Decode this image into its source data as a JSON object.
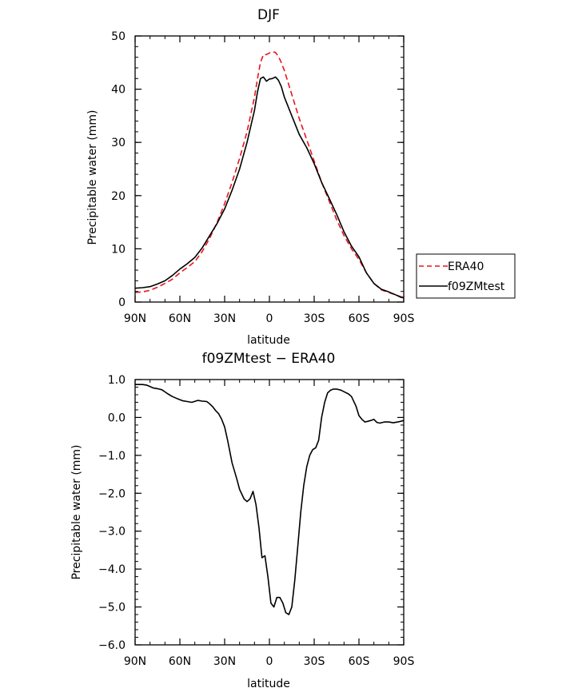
{
  "chart_data": [
    {
      "type": "line",
      "title": "DJF",
      "xlabel": "latitude",
      "ylabel": "Precipitable water (mm)",
      "xlim": [
        90,
        -90
      ],
      "ylim": [
        0,
        50
      ],
      "x_ticks": [
        90,
        60,
        30,
        0,
        -30,
        -60,
        -90
      ],
      "x_tick_labels": [
        "90N",
        "60N",
        "30N",
        "0",
        "30S",
        "60S",
        "90S"
      ],
      "y_ticks": [
        0,
        10,
        20,
        30,
        40,
        50
      ],
      "y_tick_labels": [
        "0",
        "10",
        "20",
        "30",
        "40",
        "50"
      ],
      "legend_position": "right",
      "series": [
        {
          "name": "ERA40",
          "color": "#e8141b",
          "dash": "dashed",
          "x": [
            90,
            85,
            80,
            75,
            70,
            65,
            60,
            55,
            50,
            45,
            40,
            35,
            30,
            25,
            20,
            15,
            10,
            8,
            6,
            4,
            2,
            0,
            -2,
            -4,
            -6,
            -8,
            -10,
            -15,
            -20,
            -25,
            -30,
            -35,
            -40,
            -45,
            -50,
            -55,
            -60,
            -65,
            -70,
            -75,
            -80,
            -85,
            -88,
            -90
          ],
          "y": [
            1.8,
            1.9,
            2.2,
            2.8,
            3.5,
            4.3,
            5.5,
            6.5,
            7.6,
            9.5,
            12.0,
            15.0,
            18.5,
            22.5,
            27.0,
            32.0,
            38.5,
            42.0,
            45.0,
            46.5,
            46.5,
            46.8,
            47.0,
            46.9,
            46.2,
            45.0,
            43.5,
            39.0,
            34.5,
            30.5,
            26.5,
            22.5,
            19.0,
            15.5,
            12.5,
            10.0,
            8.0,
            5.5,
            3.5,
            2.3,
            1.8,
            1.3,
            1.0,
            0.9
          ]
        },
        {
          "name": "f09ZMtest",
          "color": "#000000",
          "dash": "solid",
          "x": [
            90,
            85,
            80,
            75,
            70,
            65,
            60,
            55,
            50,
            45,
            40,
            35,
            30,
            25,
            20,
            15,
            10,
            8,
            6,
            4,
            2,
            0,
            -2,
            -4,
            -6,
            -8,
            -10,
            -15,
            -20,
            -25,
            -30,
            -35,
            -40,
            -45,
            -50,
            -55,
            -60,
            -65,
            -70,
            -75,
            -80,
            -85,
            -88,
            -90
          ],
          "y": [
            2.6,
            2.7,
            2.9,
            3.4,
            4.0,
            5.0,
            6.2,
            7.2,
            8.4,
            10.2,
            12.5,
            14.8,
            17.5,
            21.0,
            25.0,
            30.0,
            36.0,
            39.5,
            42.0,
            42.3,
            41.5,
            41.9,
            42.0,
            42.3,
            41.7,
            40.5,
            38.5,
            35.0,
            31.5,
            29.0,
            26.0,
            22.5,
            19.5,
            16.5,
            13.2,
            10.5,
            8.5,
            5.5,
            3.5,
            2.4,
            1.9,
            1.3,
            0.9,
            0.8
          ]
        }
      ]
    },
    {
      "type": "line",
      "title": "f09ZMtest − ERA40",
      "xlabel": "latitude",
      "ylabel": "Precipitable water (mm)",
      "xlim": [
        90,
        -90
      ],
      "ylim": [
        -6,
        1
      ],
      "x_ticks": [
        90,
        60,
        30,
        0,
        -30,
        -60,
        -90
      ],
      "x_tick_labels": [
        "90N",
        "60N",
        "30N",
        "0",
        "30S",
        "60S",
        "90S"
      ],
      "y_ticks": [
        1,
        0,
        -1,
        -2,
        -3,
        -4,
        -5,
        -6
      ],
      "y_tick_labels": [
        "1.0",
        "0.0",
        "−1.0",
        "−2.0",
        "−3.0",
        "−4.0",
        "−5.0",
        "−6.0"
      ],
      "series": [
        {
          "color": "#000000",
          "dash": "solid",
          "x": [
            90,
            85,
            82,
            78,
            75,
            72,
            68,
            65,
            62,
            58,
            55,
            52,
            48,
            45,
            42,
            40,
            38,
            36,
            34,
            32,
            30,
            28,
            25,
            22,
            20,
            17,
            15,
            13,
            11,
            9,
            7,
            5,
            3,
            1,
            -1,
            -3,
            -5,
            -7,
            -9,
            -11,
            -13,
            -15,
            -17,
            -19,
            -21,
            -23,
            -25,
            -27,
            -29,
            -31,
            -33,
            -35,
            -37,
            -39,
            -41,
            -43,
            -45,
            -48,
            -50,
            -53,
            -55,
            -58,
            -60,
            -62,
            -64,
            -66,
            -68,
            -70,
            -72,
            -74,
            -77,
            -80,
            -83,
            -86,
            -88,
            -90
          ],
          "y": [
            0.87,
            0.87,
            0.85,
            0.78,
            0.76,
            0.73,
            0.62,
            0.55,
            0.5,
            0.44,
            0.42,
            0.4,
            0.45,
            0.43,
            0.42,
            0.36,
            0.28,
            0.18,
            0.1,
            -0.05,
            -0.25,
            -0.6,
            -1.2,
            -1.6,
            -1.9,
            -2.15,
            -2.22,
            -2.15,
            -1.95,
            -2.3,
            -2.9,
            -3.7,
            -3.65,
            -4.2,
            -4.9,
            -5.0,
            -4.75,
            -4.75,
            -4.9,
            -5.15,
            -5.2,
            -5.0,
            -4.3,
            -3.4,
            -2.5,
            -1.8,
            -1.3,
            -1.0,
            -0.85,
            -0.8,
            -0.6,
            0.0,
            0.4,
            0.65,
            0.72,
            0.75,
            0.75,
            0.72,
            0.68,
            0.62,
            0.55,
            0.3,
            0.05,
            -0.05,
            -0.12,
            -0.1,
            -0.08,
            -0.05,
            -0.13,
            -0.15,
            -0.12,
            -0.12,
            -0.14,
            -0.12,
            -0.1,
            -0.08
          ]
        }
      ]
    }
  ]
}
